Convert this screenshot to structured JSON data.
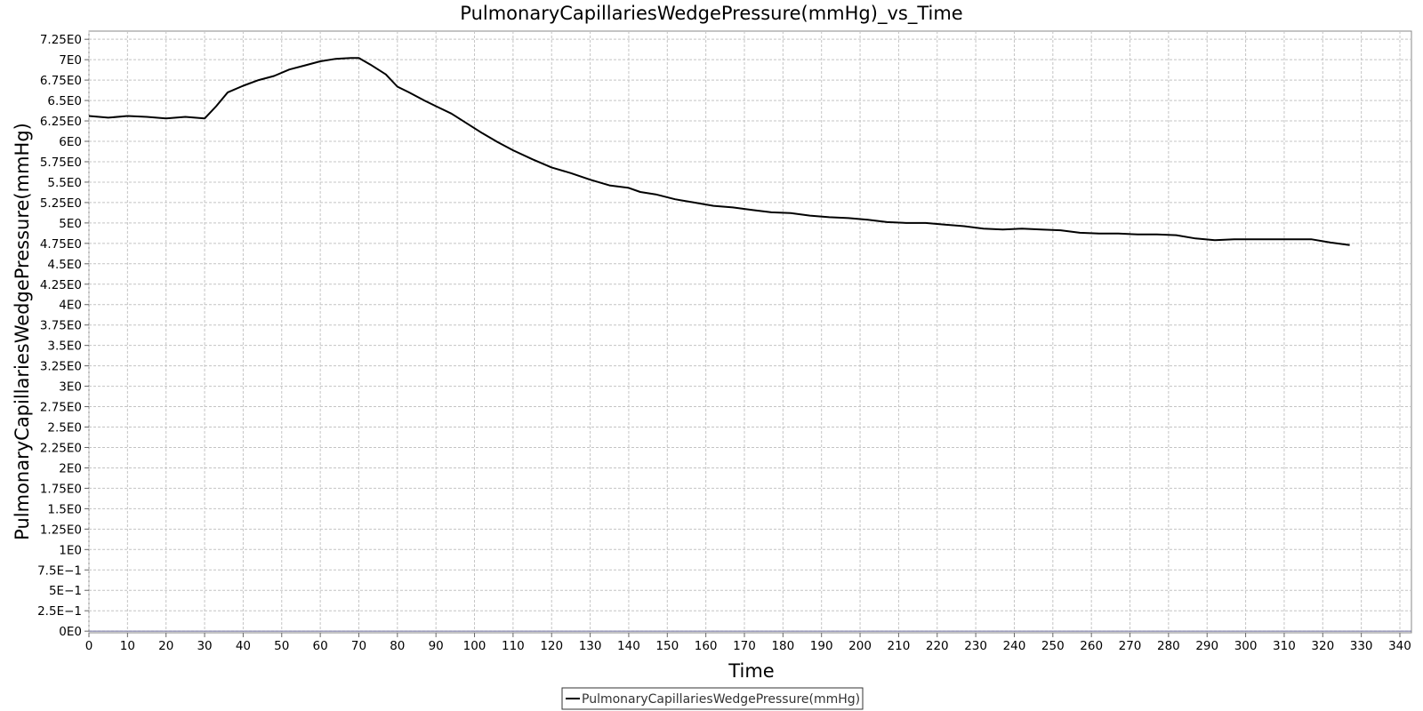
{
  "chart_data": {
    "type": "line",
    "title": "PulmonaryCapillariesWedgePressure(mmHg)_vs_Time",
    "xlabel": "Time",
    "ylabel": "PulmonaryCapillariesWedgePressure(mmHg)",
    "xlim": [
      0,
      343
    ],
    "ylim": [
      -0.02,
      7.35
    ],
    "grid": true,
    "legend_position": "bottom-center",
    "x_ticks": [
      0,
      10,
      20,
      30,
      40,
      50,
      60,
      70,
      80,
      90,
      100,
      110,
      120,
      130,
      140,
      150,
      160,
      170,
      180,
      190,
      200,
      210,
      220,
      230,
      240,
      250,
      260,
      270,
      280,
      290,
      300,
      310,
      320,
      330,
      340
    ],
    "x_tick_labels": [
      "0",
      "10",
      "20",
      "30",
      "40",
      "50",
      "60",
      "70",
      "80",
      "90",
      "100",
      "110",
      "120",
      "130",
      "140",
      "150",
      "160",
      "170",
      "180",
      "190",
      "200",
      "210",
      "220",
      "230",
      "240",
      "250",
      "260",
      "270",
      "280",
      "290",
      "300",
      "310",
      "320",
      "330",
      "340"
    ],
    "y_ticks": [
      0,
      0.25,
      0.5,
      0.75,
      1,
      1.25,
      1.5,
      1.75,
      2,
      2.25,
      2.5,
      2.75,
      3,
      3.25,
      3.5,
      3.75,
      4,
      4.25,
      4.5,
      4.75,
      5,
      5.25,
      5.5,
      5.75,
      6,
      6.25,
      6.5,
      6.75,
      7,
      7.25
    ],
    "y_tick_labels": [
      "0E0",
      "2.5E−1",
      "5E−1",
      "7.5E−1",
      "1E0",
      "1.25E0",
      "1.5E0",
      "1.75E0",
      "2E0",
      "2.25E0",
      "2.5E0",
      "2.75E0",
      "3E0",
      "3.25E0",
      "3.5E0",
      "3.75E0",
      "4E0",
      "4.25E0",
      "4.5E0",
      "4.75E0",
      "5E0",
      "5.25E0",
      "5.5E0",
      "5.75E0",
      "6E0",
      "6.25E0",
      "6.5E0",
      "6.75E0",
      "7E0",
      "7.25E0"
    ],
    "series": [
      {
        "name": "PulmonaryCapillariesWedgePressure(mmHg)",
        "color": "#000000",
        "x": [
          0,
          5,
          10,
          15,
          20,
          25,
          30,
          33,
          36,
          40,
          44,
          48,
          52,
          56,
          60,
          64,
          68,
          70,
          73,
          77,
          80,
          83,
          87,
          90,
          94,
          98,
          102,
          106,
          110,
          115,
          120,
          125,
          130,
          135,
          140,
          143,
          147,
          152,
          157,
          162,
          167,
          172,
          177,
          182,
          187,
          192,
          197,
          202,
          207,
          212,
          217,
          222,
          227,
          232,
          237,
          242,
          247,
          252,
          257,
          262,
          267,
          272,
          277,
          282,
          287,
          292,
          297,
          302,
          307,
          312,
          317,
          322,
          327
        ],
        "y": [
          6.31,
          6.29,
          6.31,
          6.3,
          6.28,
          6.3,
          6.28,
          6.43,
          6.6,
          6.68,
          6.75,
          6.8,
          6.88,
          6.93,
          6.98,
          7.01,
          7.02,
          7.02,
          6.94,
          6.82,
          6.67,
          6.6,
          6.5,
          6.43,
          6.34,
          6.22,
          6.1,
          5.99,
          5.89,
          5.78,
          5.68,
          5.61,
          5.53,
          5.46,
          5.43,
          5.38,
          5.35,
          5.29,
          5.25,
          5.21,
          5.19,
          5.16,
          5.13,
          5.12,
          5.09,
          5.07,
          5.06,
          5.04,
          5.01,
          5.0,
          5.0,
          4.98,
          4.96,
          4.93,
          4.92,
          4.93,
          4.92,
          4.91,
          4.88,
          4.87,
          4.87,
          4.86,
          4.86,
          4.85,
          4.81,
          4.79,
          4.8,
          4.8,
          4.8,
          4.8,
          4.8,
          4.76,
          4.73
        ]
      }
    ]
  }
}
